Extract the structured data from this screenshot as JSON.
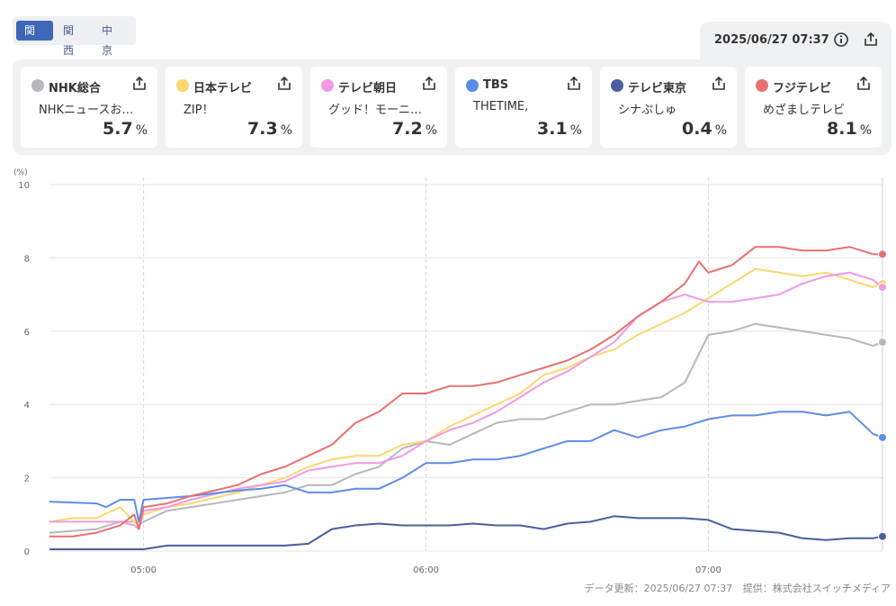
{
  "region_tabs": [
    "関東",
    "関西",
    "中京"
  ],
  "active_region": "関東",
  "timestamp": "2025/06/27 07:37",
  "channels": [
    {
      "name": "NHK総合",
      "program": "NHKニュースお…",
      "rating": "5.7",
      "unit": "%",
      "color": "#b7b8bd"
    },
    {
      "name": "日本テレビ",
      "program": "ZIP！",
      "rating": "7.3",
      "unit": "%",
      "color": "#f9d870"
    },
    {
      "name": "テレビ朝日",
      "program": "グッド！モーニ…",
      "rating": "7.2",
      "unit": "%",
      "color": "#f199e2"
    },
    {
      "name": "TBS",
      "program": "THETIME,",
      "rating": "3.1",
      "unit": "%",
      "color": "#5d8ee6"
    },
    {
      "name": "テレビ東京",
      "program": "シナぷしゅ",
      "rating": "0.4",
      "unit": "%",
      "color": "#4a5ea0"
    },
    {
      "name": "フジテレビ",
      "program": "めざましテレビ",
      "rating": "8.1",
      "unit": "%",
      "color": "#e97070"
    }
  ],
  "footer": {
    "updated": "データ更新：2025/06/27 07:37",
    "provider": "提供：株式会社スイッチメディア"
  },
  "chart_data": {
    "type": "line",
    "ylabel": "(%)",
    "ylim": [
      0,
      10
    ],
    "yticks": [
      0,
      2,
      4,
      6,
      8,
      10
    ],
    "x_range_minutes": [
      280,
      457
    ],
    "xticks": [
      {
        "label": "05:00",
        "minute": 300
      },
      {
        "label": "06:00",
        "minute": 360
      },
      {
        "label": "07:00",
        "minute": 420
      }
    ],
    "grid": true,
    "series": [
      {
        "name": "NHK総合",
        "color": "#b7b8bd",
        "x": [
          280,
          290,
          295,
          298,
          299,
          300,
          305,
          310,
          320,
          325,
          330,
          335,
          340,
          345,
          350,
          355,
          360,
          365,
          370,
          375,
          380,
          385,
          390,
          395,
          400,
          405,
          410,
          415,
          420,
          425,
          430,
          435,
          440,
          445,
          450,
          455,
          457
        ],
        "y": [
          0.5,
          0.6,
          0.8,
          0.8,
          0.7,
          0.8,
          1.1,
          1.2,
          1.4,
          1.5,
          1.6,
          1.8,
          1.8,
          2.1,
          2.3,
          2.8,
          3.0,
          2.9,
          3.2,
          3.5,
          3.6,
          3.6,
          3.8,
          4.0,
          4.0,
          4.1,
          4.2,
          4.6,
          5.9,
          6.0,
          6.2,
          6.1,
          6.0,
          5.9,
          5.8,
          5.6,
          5.7
        ]
      },
      {
        "name": "日本テレビ",
        "color": "#f9d870",
        "x": [
          280,
          285,
          290,
          295,
          298,
          299,
          300,
          305,
          310,
          320,
          325,
          330,
          335,
          340,
          345,
          350,
          355,
          360,
          365,
          370,
          375,
          380,
          385,
          390,
          395,
          400,
          405,
          410,
          415,
          420,
          425,
          430,
          435,
          440,
          445,
          450,
          455,
          457
        ],
        "y": [
          0.8,
          0.9,
          0.9,
          1.2,
          0.8,
          0.7,
          1.0,
          1.2,
          1.3,
          1.6,
          1.8,
          2.0,
          2.3,
          2.5,
          2.6,
          2.6,
          2.9,
          3.0,
          3.4,
          3.7,
          4.0,
          4.3,
          4.8,
          5.0,
          5.3,
          5.5,
          5.9,
          6.2,
          6.5,
          6.9,
          7.3,
          7.7,
          7.6,
          7.5,
          7.6,
          7.4,
          7.2,
          7.3
        ]
      },
      {
        "name": "テレビ朝日",
        "color": "#f199e2",
        "x": [
          280,
          285,
          290,
          295,
          298,
          299,
          300,
          305,
          310,
          320,
          325,
          330,
          335,
          340,
          345,
          350,
          355,
          360,
          365,
          370,
          375,
          380,
          385,
          390,
          395,
          400,
          405,
          410,
          415,
          420,
          425,
          430,
          435,
          440,
          445,
          450,
          455,
          457
        ],
        "y": [
          0.8,
          0.8,
          0.8,
          0.8,
          0.7,
          0.6,
          1.1,
          1.2,
          1.4,
          1.7,
          1.8,
          1.9,
          2.2,
          2.3,
          2.4,
          2.4,
          2.6,
          3.0,
          3.3,
          3.5,
          3.8,
          4.2,
          4.6,
          4.9,
          5.3,
          5.7,
          6.4,
          6.8,
          7.0,
          6.8,
          6.8,
          6.9,
          7.0,
          7.3,
          7.5,
          7.6,
          7.4,
          7.2
        ]
      },
      {
        "name": "TBS",
        "color": "#5d8ee6",
        "x": [
          280,
          290,
          292,
          295,
          298,
          299,
          300,
          305,
          310,
          320,
          325,
          330,
          335,
          340,
          345,
          350,
          355,
          360,
          365,
          370,
          375,
          380,
          385,
          390,
          395,
          400,
          405,
          410,
          415,
          420,
          425,
          430,
          435,
          440,
          445,
          450,
          455,
          457
        ],
        "y": [
          1.35,
          1.3,
          1.2,
          1.4,
          1.4,
          0.8,
          1.4,
          1.45,
          1.5,
          1.65,
          1.7,
          1.8,
          1.6,
          1.6,
          1.7,
          1.7,
          2.0,
          2.4,
          2.4,
          2.5,
          2.5,
          2.6,
          2.8,
          3.0,
          3.0,
          3.3,
          3.1,
          3.3,
          3.4,
          3.6,
          3.7,
          3.7,
          3.8,
          3.8,
          3.7,
          3.8,
          3.2,
          3.1
        ]
      },
      {
        "name": "テレビ東京",
        "color": "#4a5ea0",
        "x": [
          280,
          290,
          300,
          305,
          310,
          320,
          330,
          335,
          340,
          345,
          350,
          355,
          360,
          365,
          370,
          375,
          380,
          385,
          390,
          395,
          400,
          405,
          410,
          415,
          420,
          425,
          430,
          435,
          440,
          445,
          450,
          455,
          457
        ],
        "y": [
          0.05,
          0.05,
          0.05,
          0.15,
          0.15,
          0.15,
          0.15,
          0.2,
          0.6,
          0.7,
          0.75,
          0.7,
          0.7,
          0.7,
          0.75,
          0.7,
          0.7,
          0.6,
          0.75,
          0.8,
          0.95,
          0.9,
          0.9,
          0.9,
          0.85,
          0.6,
          0.55,
          0.5,
          0.35,
          0.3,
          0.35,
          0.35,
          0.4
        ]
      },
      {
        "name": "フジテレビ",
        "color": "#e97070",
        "x": [
          280,
          285,
          290,
          295,
          298,
          299,
          300,
          305,
          310,
          320,
          325,
          330,
          335,
          340,
          345,
          350,
          355,
          360,
          365,
          370,
          375,
          380,
          385,
          390,
          395,
          400,
          405,
          410,
          415,
          418,
          420,
          425,
          430,
          435,
          440,
          445,
          450,
          455,
          457
        ],
        "y": [
          0.4,
          0.4,
          0.5,
          0.7,
          1.0,
          0.6,
          1.2,
          1.3,
          1.5,
          1.8,
          2.1,
          2.3,
          2.6,
          2.9,
          3.5,
          3.8,
          4.3,
          4.3,
          4.5,
          4.5,
          4.6,
          4.8,
          5.0,
          5.2,
          5.5,
          5.9,
          6.4,
          6.8,
          7.3,
          7.9,
          7.6,
          7.8,
          8.3,
          8.3,
          8.2,
          8.2,
          8.3,
          8.1,
          8.1
        ]
      }
    ]
  }
}
